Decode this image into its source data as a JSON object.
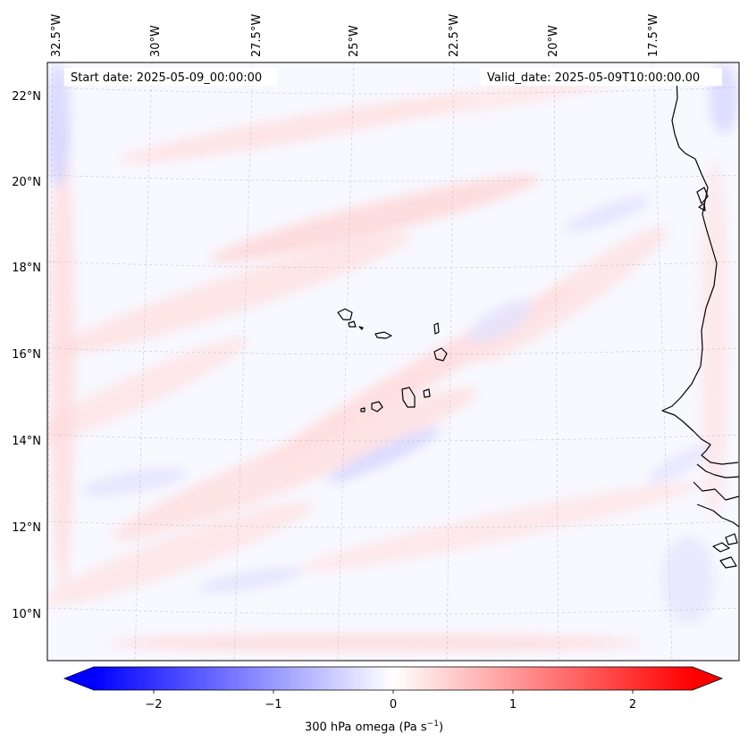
{
  "header": {
    "start_date": "Start date: 2025-05-09_00:00:00",
    "valid_date": "Valid_date: 2025-05-09T10:00:00.00"
  },
  "axes": {
    "lon_labels": [
      "32.5°W",
      "30°W",
      "27.5°W",
      "25°W",
      "22.5°W",
      "20°W",
      "17.5°W"
    ],
    "lat_labels": [
      "22°N",
      "20°N",
      "18°N",
      "16°N",
      "14°N",
      "12°N",
      "10°N"
    ]
  },
  "colorbar": {
    "ticks": [
      "−2",
      "−1",
      "0",
      "1",
      "2"
    ],
    "tick_values": [
      -2,
      -1,
      0,
      1,
      2
    ],
    "min": -2.5,
    "max": 2.5,
    "label_main": "300 hPa omega (Pa s",
    "label_exp": "−1",
    "label_end": ")"
  },
  "colors": {
    "negative": "#0000ff",
    "zero": "#ffffff",
    "positive": "#ff0000"
  }
}
